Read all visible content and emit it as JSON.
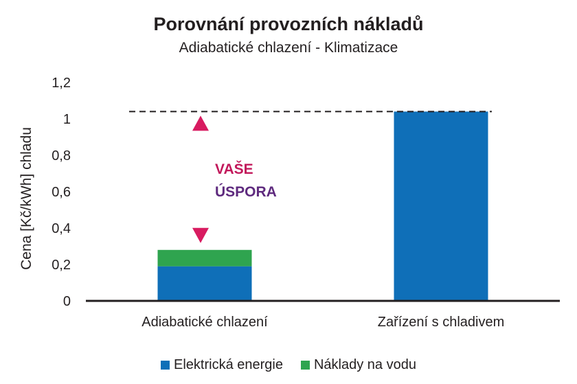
{
  "chart_data": {
    "type": "bar",
    "stacked": true,
    "title": "Porovnání provozních nákladů",
    "subtitle": "Adiabatické chlazení - Klimatizace",
    "ylabel": "Cena [Kč/kWh] chladu",
    "xlabel": "",
    "ylim": [
      0,
      1.2
    ],
    "yticks": [
      0,
      0.2,
      0.4,
      0.6,
      0.8,
      1,
      1.2
    ],
    "ytick_labels": [
      "0",
      "0,2",
      "0,4",
      "0,6",
      "0,8",
      "1",
      "1,2"
    ],
    "categories": [
      "Adiabatické chlazení",
      "Zařízení s chladivem"
    ],
    "series": [
      {
        "name": "Elektrická energie",
        "color": "#0f6fb8",
        "values": [
          0.19,
          1.04
        ]
      },
      {
        "name": "Náklady na vodu",
        "color": "#2fa44f",
        "values": [
          0.09,
          0
        ]
      }
    ],
    "reference_line": {
      "value": 1.04,
      "style": "dashed"
    },
    "annotation": {
      "lines": [
        "VAŠE",
        "ÚSPORA"
      ],
      "from": 0.28,
      "to": 1.04,
      "arrow_colors": [
        "#d81b60",
        "#3b2b7a"
      ]
    },
    "legend_position": "bottom",
    "grid": false
  }
}
